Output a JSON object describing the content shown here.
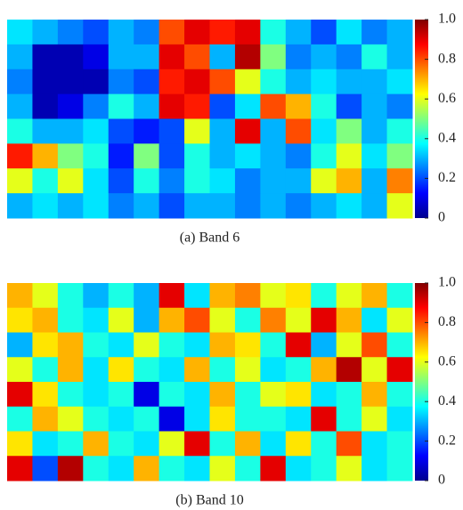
{
  "chart_data": [
    {
      "type": "heatmap",
      "caption": "(a) Band 6",
      "colormap": "jet",
      "clim": [
        0,
        1
      ],
      "colorbar_ticks": [
        0,
        0.2,
        0.4,
        0.6,
        0.8,
        {
          "value": 1,
          "label": "1.0"
        }
      ],
      "z": [
        [
          0.35,
          0.3,
          0.25,
          0.2,
          0.3,
          0.25,
          0.8,
          0.9,
          0.85,
          0.9,
          0.4,
          0.3,
          0.2,
          0.35,
          0.25,
          0.3
        ],
        [
          0.3,
          0.05,
          0.05,
          0.1,
          0.3,
          0.3,
          0.9,
          0.8,
          0.3,
          0.95,
          0.5,
          0.25,
          0.3,
          0.25,
          0.4,
          0.3
        ],
        [
          0.25,
          0.05,
          0.05,
          0.05,
          0.25,
          0.2,
          0.85,
          0.9,
          0.8,
          0.6,
          0.4,
          0.3,
          0.35,
          0.3,
          0.3,
          0.35
        ],
        [
          0.3,
          0.05,
          0.1,
          0.25,
          0.4,
          0.3,
          0.9,
          0.85,
          0.2,
          0.35,
          0.8,
          0.7,
          0.4,
          0.2,
          0.3,
          0.25
        ],
        [
          0.4,
          0.3,
          0.3,
          0.35,
          0.2,
          0.15,
          0.2,
          0.6,
          0.3,
          0.9,
          0.3,
          0.8,
          0.35,
          0.5,
          0.3,
          0.4
        ],
        [
          0.85,
          0.7,
          0.5,
          0.4,
          0.15,
          0.5,
          0.2,
          0.4,
          0.3,
          0.35,
          0.3,
          0.25,
          0.4,
          0.6,
          0.35,
          0.5
        ],
        [
          0.6,
          0.4,
          0.6,
          0.35,
          0.2,
          0.4,
          0.25,
          0.4,
          0.35,
          0.25,
          0.3,
          0.3,
          0.6,
          0.7,
          0.3,
          0.75
        ],
        [
          0.3,
          0.35,
          0.3,
          0.35,
          0.25,
          0.3,
          0.2,
          0.3,
          0.3,
          0.25,
          0.3,
          0.25,
          0.3,
          0.35,
          0.3,
          0.6
        ]
      ]
    },
    {
      "type": "heatmap",
      "caption": "(b) Band 10",
      "colormap": "jet",
      "clim": [
        0,
        1
      ],
      "colorbar_ticks": [
        0,
        0.2,
        0.4,
        0.6,
        0.8,
        {
          "value": 1,
          "label": "1.0"
        }
      ],
      "z": [
        [
          0.7,
          0.6,
          0.4,
          0.3,
          0.4,
          0.3,
          0.9,
          0.35,
          0.7,
          0.75,
          0.6,
          0.65,
          0.4,
          0.6,
          0.7,
          0.4
        ],
        [
          0.65,
          0.7,
          0.4,
          0.35,
          0.6,
          0.3,
          0.7,
          0.8,
          0.6,
          0.4,
          0.75,
          0.6,
          0.9,
          0.7,
          0.35,
          0.6
        ],
        [
          0.3,
          0.65,
          0.7,
          0.4,
          0.35,
          0.6,
          0.4,
          0.35,
          0.7,
          0.65,
          0.4,
          0.9,
          0.3,
          0.6,
          0.8,
          0.4
        ],
        [
          0.6,
          0.4,
          0.7,
          0.35,
          0.65,
          0.4,
          0.35,
          0.7,
          0.4,
          0.6,
          0.35,
          0.4,
          0.7,
          0.95,
          0.6,
          0.9
        ],
        [
          0.9,
          0.65,
          0.4,
          0.35,
          0.4,
          0.1,
          0.4,
          0.35,
          0.7,
          0.4,
          0.6,
          0.65,
          0.35,
          0.4,
          0.7,
          0.4
        ],
        [
          0.4,
          0.7,
          0.6,
          0.4,
          0.35,
          0.4,
          0.1,
          0.35,
          0.65,
          0.4,
          0.4,
          0.35,
          0.9,
          0.4,
          0.6,
          0.35
        ],
        [
          0.65,
          0.35,
          0.4,
          0.7,
          0.4,
          0.35,
          0.6,
          0.9,
          0.4,
          0.7,
          0.35,
          0.65,
          0.4,
          0.8,
          0.35,
          0.4
        ],
        [
          0.9,
          0.2,
          0.95,
          0.4,
          0.35,
          0.7,
          0.4,
          0.35,
          0.6,
          0.4,
          0.9,
          0.35,
          0.4,
          0.6,
          0.35,
          0.4
        ]
      ]
    }
  ]
}
